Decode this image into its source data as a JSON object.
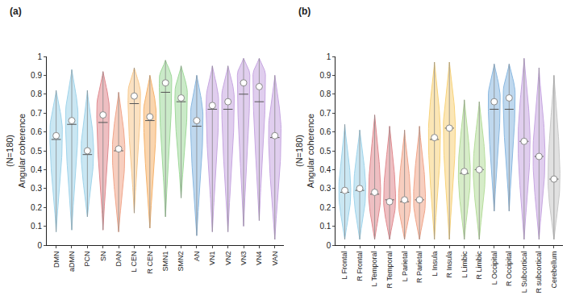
{
  "chart_data": [
    {
      "type": "violin",
      "title": "(a)",
      "ylabel": "Angular coherence",
      "note": "(N=180)",
      "categories": [
        "DMN",
        "aDMN",
        "PCN",
        "SN",
        "DAN",
        "L CEN",
        "R CEN",
        "SMN1",
        "SMN2",
        "AN",
        "VN1",
        "VN2",
        "VN3",
        "VN4",
        "VAN"
      ],
      "colors": [
        "#9fd3ea",
        "#9fd3ea",
        "#9fd3ea",
        "#e08a8f",
        "#f0a58a",
        "#f7c98e",
        "#f5b26b",
        "#9fd89a",
        "#9fd89a",
        "#8ab8e0",
        "#c6a6e0",
        "#c6a6e0",
        "#c6a6e0",
        "#c6a6e0",
        "#c6a6e0"
      ],
      "min": [
        0.07,
        0.08,
        0.15,
        0.08,
        0.07,
        0.17,
        0.09,
        0.15,
        0.25,
        0.05,
        0.07,
        0.07,
        0.1,
        0.13,
        0.03
      ],
      "max": [
        0.82,
        0.93,
        0.82,
        0.92,
        0.81,
        0.94,
        0.9,
        0.98,
        0.95,
        0.9,
        0.95,
        0.95,
        0.99,
        0.99,
        0.9
      ],
      "median": [
        0.56,
        0.64,
        0.48,
        0.65,
        0.5,
        0.75,
        0.66,
        0.81,
        0.76,
        0.63,
        0.72,
        0.72,
        0.8,
        0.76,
        0.57
      ],
      "mean": [
        0.58,
        0.66,
        0.5,
        0.69,
        0.51,
        0.79,
        0.68,
        0.86,
        0.78,
        0.66,
        0.74,
        0.76,
        0.86,
        0.84,
        0.58
      ],
      "peak": [
        0.6,
        0.68,
        0.5,
        0.72,
        0.5,
        0.8,
        0.7,
        0.88,
        0.8,
        0.68,
        0.76,
        0.78,
        0.9,
        0.9,
        0.6
      ],
      "ylim": [
        0,
        1
      ],
      "yticks": [
        0,
        0.1,
        0.2,
        0.3,
        0.4,
        0.5,
        0.6,
        0.7,
        0.8,
        0.9,
        1
      ]
    },
    {
      "type": "violin",
      "title": "(b)",
      "ylabel": "Angular coherence",
      "note": "(N=180)",
      "categories": [
        "L Frontal",
        "R Frontal",
        "L Temporal",
        "R Temporal",
        "L Parietal",
        "R Parietal",
        "L Insula",
        "R Insula",
        "L Limbic",
        "R Limbic",
        "L Occipital",
        "R Occipital",
        "L Subcortical",
        "R subcortical",
        "Cerebellum"
      ],
      "colors": [
        "#9fd3ea",
        "#9fd3ea",
        "#e08a8f",
        "#e08a8f",
        "#f0a58a",
        "#f0a58a",
        "#f7d27a",
        "#f7d27a",
        "#b5dc9a",
        "#b5dc9a",
        "#8ab8e0",
        "#8ab8e0",
        "#c6a6e0",
        "#c6a6e0",
        "#c8c8c8"
      ],
      "min": [
        0.03,
        0.03,
        0.03,
        0.03,
        0.03,
        0.03,
        0.03,
        0.03,
        0.03,
        0.03,
        0.18,
        0.18,
        0.03,
        0.03,
        0.03
      ],
      "max": [
        0.64,
        0.61,
        0.69,
        0.63,
        0.61,
        0.63,
        0.97,
        0.97,
        0.77,
        0.76,
        0.96,
        0.96,
        0.99,
        0.94,
        0.9
      ],
      "median": [
        0.28,
        0.29,
        0.27,
        0.24,
        0.23,
        0.24,
        0.56,
        0.62,
        0.38,
        0.4,
        0.72,
        0.72,
        0.55,
        0.47,
        0.35
      ],
      "mean": [
        0.29,
        0.3,
        0.28,
        0.23,
        0.24,
        0.24,
        0.57,
        0.62,
        0.39,
        0.4,
        0.76,
        0.78,
        0.55,
        0.47,
        0.35
      ],
      "peak": [
        0.28,
        0.29,
        0.27,
        0.24,
        0.23,
        0.24,
        0.58,
        0.62,
        0.38,
        0.4,
        0.78,
        0.8,
        0.55,
        0.47,
        0.35
      ],
      "ylim": [
        0,
        1
      ],
      "yticks": [
        0,
        0.1,
        0.2,
        0.3,
        0.4,
        0.5,
        0.6,
        0.7,
        0.8,
        0.9,
        1
      ]
    }
  ]
}
